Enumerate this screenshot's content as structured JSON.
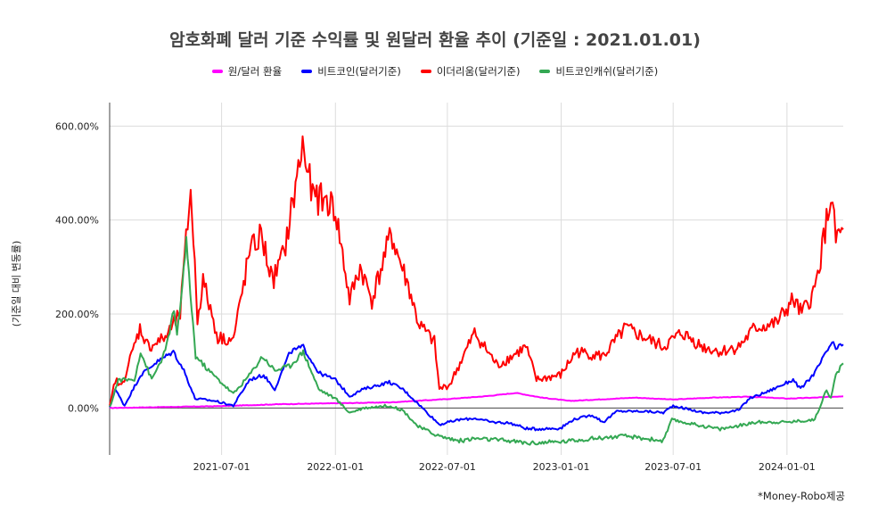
{
  "chart_data": {
    "type": "line",
    "title": "암호화폐 달러 기준 수익률 및 원달러 환율 추이 (기준일 : 2021.01.01)",
    "ylabel": "(기준일 대비 변동률)",
    "xlabel": "",
    "footnote": "*Money-Robo제공",
    "x_tick_labels": [
      "2021-07-01",
      "2022-01-01",
      "2022-07-01",
      "2023-01-01",
      "2023-07-01",
      "2024-01-01"
    ],
    "y_tick_labels": [
      "0.00%",
      "200.00%",
      "400.00%",
      "600.00%"
    ],
    "ylim": [
      -100,
      650
    ],
    "xlim": [
      "2021-01-01",
      "2024-04-01"
    ],
    "grid": true,
    "legend_position": "top",
    "series": [
      {
        "name": "원/달러 환율",
        "color": "#ff00ff",
        "points": [
          [
            "2021-01-01",
            0
          ],
          [
            "2021-04-01",
            2
          ],
          [
            "2021-07-01",
            4
          ],
          [
            "2021-10-01",
            8
          ],
          [
            "2022-01-01",
            10
          ],
          [
            "2022-04-01",
            12
          ],
          [
            "2022-07-01",
            19
          ],
          [
            "2022-09-01",
            25
          ],
          [
            "2022-10-20",
            32
          ],
          [
            "2022-12-01",
            22
          ],
          [
            "2023-01-15",
            15
          ],
          [
            "2023-03-01",
            18
          ],
          [
            "2023-05-01",
            22
          ],
          [
            "2023-07-01",
            18
          ],
          [
            "2023-09-01",
            22
          ],
          [
            "2023-11-01",
            24
          ],
          [
            "2024-01-01",
            20
          ],
          [
            "2024-02-15",
            22
          ],
          [
            "2024-04-01",
            25
          ]
        ]
      },
      {
        "name": "비트코인(달러기준)",
        "color": "#0000ff",
        "points": [
          [
            "2021-01-01",
            0
          ],
          [
            "2021-01-10",
            40
          ],
          [
            "2021-01-25",
            5
          ],
          [
            "2021-02-20",
            70
          ],
          [
            "2021-03-15",
            95
          ],
          [
            "2021-04-14",
            120
          ],
          [
            "2021-05-01",
            80
          ],
          [
            "2021-05-19",
            20
          ],
          [
            "2021-06-20",
            15
          ],
          [
            "2021-07-20",
            5
          ],
          [
            "2021-08-15",
            60
          ],
          [
            "2021-09-07",
            70
          ],
          [
            "2021-09-25",
            40
          ],
          [
            "2021-10-20",
            120
          ],
          [
            "2021-11-10",
            130
          ],
          [
            "2021-12-05",
            75
          ],
          [
            "2022-01-01",
            60
          ],
          [
            "2022-01-24",
            25
          ],
          [
            "2022-02-15",
            40
          ],
          [
            "2022-03-29",
            55
          ],
          [
            "2022-04-20",
            40
          ],
          [
            "2022-05-10",
            15
          ],
          [
            "2022-06-18",
            -35
          ],
          [
            "2022-07-20",
            -25
          ],
          [
            "2022-08-15",
            -22
          ],
          [
            "2022-09-10",
            -30
          ],
          [
            "2022-10-10",
            -32
          ],
          [
            "2022-11-09",
            -45
          ],
          [
            "2022-12-31",
            -43
          ],
          [
            "2023-01-20",
            -25
          ],
          [
            "2023-02-20",
            -15
          ],
          [
            "2023-03-10",
            -30
          ],
          [
            "2023-04-01",
            -7
          ],
          [
            "2023-05-15",
            -7
          ],
          [
            "2023-06-15",
            -10
          ],
          [
            "2023-07-01",
            5
          ],
          [
            "2023-08-18",
            -10
          ],
          [
            "2023-09-15",
            -10
          ],
          [
            "2023-10-15",
            -5
          ],
          [
            "2023-11-01",
            20
          ],
          [
            "2023-12-01",
            35
          ],
          [
            "2024-01-11",
            60
          ],
          [
            "2024-01-23",
            40
          ],
          [
            "2024-02-15",
            75
          ],
          [
            "2024-03-14",
            140
          ],
          [
            "2024-03-20",
            125
          ],
          [
            "2024-04-01",
            135
          ]
        ]
      },
      {
        "name": "이더리움(달러기준)",
        "color": "#ff0000",
        "points": [
          [
            "2021-01-01",
            0
          ],
          [
            "2021-01-10",
            60
          ],
          [
            "2021-01-20",
            45
          ],
          [
            "2021-02-19",
            170
          ],
          [
            "2021-03-05",
            130
          ],
          [
            "2021-04-01",
            150
          ],
          [
            "2021-04-25",
            200
          ],
          [
            "2021-05-12",
            470
          ],
          [
            "2021-05-23",
            190
          ],
          [
            "2021-06-01",
            270
          ],
          [
            "2021-06-25",
            150
          ],
          [
            "2021-07-20",
            145
          ],
          [
            "2021-08-15",
            330
          ],
          [
            "2021-09-03",
            370
          ],
          [
            "2021-09-21",
            270
          ],
          [
            "2021-10-10",
            330
          ],
          [
            "2021-11-09",
            560
          ],
          [
            "2021-11-25",
            450
          ],
          [
            "2021-12-20",
            440
          ],
          [
            "2022-01-01",
            420
          ],
          [
            "2022-01-24",
            230
          ],
          [
            "2022-02-10",
            300
          ],
          [
            "2022-03-01",
            230
          ],
          [
            "2022-04-01",
            370
          ],
          [
            "2022-05-01",
            250
          ],
          [
            "2022-05-15",
            180
          ],
          [
            "2022-06-10",
            140
          ],
          [
            "2022-06-18",
            40
          ],
          [
            "2022-07-05",
            50
          ],
          [
            "2022-08-14",
            160
          ],
          [
            "2022-09-20",
            90
          ],
          [
            "2022-11-05",
            130
          ],
          [
            "2022-11-22",
            60
          ],
          [
            "2022-12-31",
            70
          ],
          [
            "2023-01-25",
            120
          ],
          [
            "2023-03-10",
            110
          ],
          [
            "2023-04-15",
            170
          ],
          [
            "2023-05-15",
            150
          ],
          [
            "2023-06-15",
            130
          ],
          [
            "2023-07-15",
            160
          ],
          [
            "2023-08-18",
            130
          ],
          [
            "2023-09-15",
            120
          ],
          [
            "2023-10-15",
            130
          ],
          [
            "2023-11-10",
            170
          ],
          [
            "2023-12-15",
            180
          ],
          [
            "2024-01-11",
            230
          ],
          [
            "2024-01-25",
            200
          ],
          [
            "2024-02-15",
            250
          ],
          [
            "2024-03-12",
            450
          ],
          [
            "2024-03-20",
            360
          ],
          [
            "2024-04-01",
            380
          ]
        ]
      },
      {
        "name": "비트코인캐쉬(달러기준)",
        "color": "#34a853",
        "points": [
          [
            "2021-01-01",
            0
          ],
          [
            "2021-01-15",
            60
          ],
          [
            "2021-02-10",
            60
          ],
          [
            "2021-02-20",
            120
          ],
          [
            "2021-03-10",
            60
          ],
          [
            "2021-04-01",
            120
          ],
          [
            "2021-04-15",
            210
          ],
          [
            "2021-04-20",
            150
          ],
          [
            "2021-05-05",
            350
          ],
          [
            "2021-05-20",
            110
          ],
          [
            "2021-06-10",
            80
          ],
          [
            "2021-07-20",
            30
          ],
          [
            "2021-08-15",
            70
          ],
          [
            "2021-09-05",
            110
          ],
          [
            "2021-09-25",
            80
          ],
          [
            "2021-10-20",
            90
          ],
          [
            "2021-11-10",
            120
          ],
          [
            "2021-12-05",
            40
          ],
          [
            "2022-01-01",
            20
          ],
          [
            "2022-01-24",
            -10
          ],
          [
            "2022-02-15",
            0
          ],
          [
            "2022-03-29",
            5
          ],
          [
            "2022-04-20",
            -5
          ],
          [
            "2022-05-15",
            -40
          ],
          [
            "2022-06-18",
            -60
          ],
          [
            "2022-07-20",
            -70
          ],
          [
            "2022-08-15",
            -65
          ],
          [
            "2022-10-10",
            -70
          ],
          [
            "2022-11-09",
            -75
          ],
          [
            "2022-12-31",
            -72
          ],
          [
            "2023-02-20",
            -65
          ],
          [
            "2023-04-15",
            -60
          ],
          [
            "2023-06-15",
            -70
          ],
          [
            "2023-06-29",
            -25
          ],
          [
            "2023-07-15",
            -30
          ],
          [
            "2023-09-15",
            -45
          ],
          [
            "2023-11-15",
            -30
          ],
          [
            "2024-01-01",
            -30
          ],
          [
            "2024-02-15",
            -25
          ],
          [
            "2024-03-05",
            40
          ],
          [
            "2024-03-12",
            20
          ],
          [
            "2024-03-20",
            70
          ],
          [
            "2024-04-01",
            95
          ]
        ]
      }
    ]
  }
}
